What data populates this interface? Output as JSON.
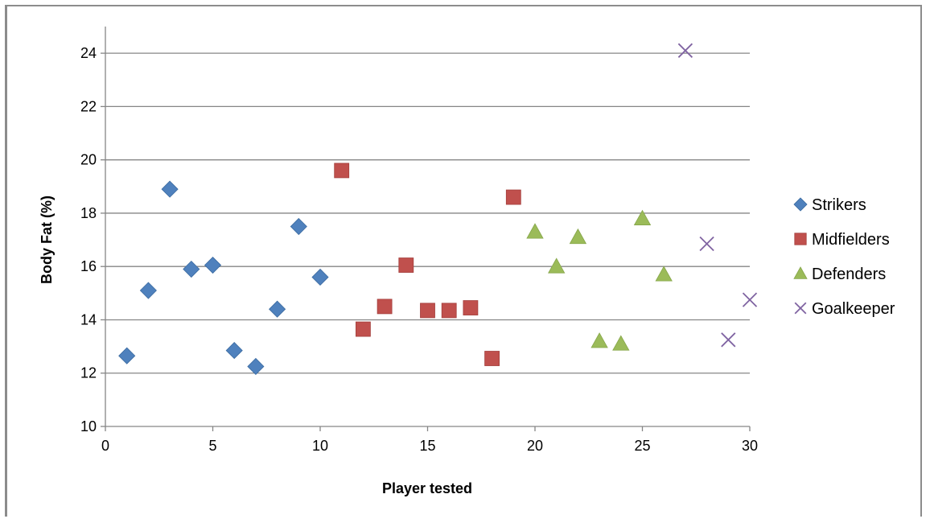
{
  "chart_data": {
    "type": "scatter",
    "title": "",
    "xlabel": "Player tested",
    "ylabel": "Body Fat (%)",
    "xlim": [
      0,
      30
    ],
    "ylim": [
      10,
      25
    ],
    "x_ticks": [
      0,
      5,
      10,
      15,
      20,
      25,
      30
    ],
    "y_ticks": [
      10,
      12,
      14,
      16,
      18,
      20,
      22,
      24
    ],
    "grid": "horizontal",
    "legend_position": "right",
    "series": [
      {
        "name": "Strikers",
        "marker": "diamond",
        "color": "#4f81bd",
        "x": [
          1,
          2,
          3,
          4,
          5,
          6,
          7,
          8,
          9,
          10
        ],
        "y": [
          12.65,
          15.1,
          18.9,
          15.9,
          16.05,
          12.85,
          12.25,
          14.4,
          17.5,
          15.6
        ]
      },
      {
        "name": "Midfielders",
        "marker": "square",
        "color": "#c0504d",
        "x": [
          11,
          12,
          13,
          14,
          15,
          16,
          17,
          18,
          19
        ],
        "y": [
          19.6,
          13.65,
          14.5,
          16.05,
          14.35,
          14.35,
          14.45,
          12.55,
          18.6
        ]
      },
      {
        "name": "Defenders",
        "marker": "triangle",
        "color": "#9bbb59",
        "x": [
          20,
          21,
          22,
          23,
          24,
          25,
          26
        ],
        "y": [
          17.3,
          16.0,
          17.1,
          13.2,
          13.1,
          17.8,
          15.7
        ]
      },
      {
        "name": "Goalkeeper",
        "marker": "x",
        "color": "#8064a2",
        "x": [
          27,
          28,
          29,
          30
        ],
        "y": [
          24.1,
          16.85,
          13.25,
          14.75
        ]
      }
    ]
  }
}
